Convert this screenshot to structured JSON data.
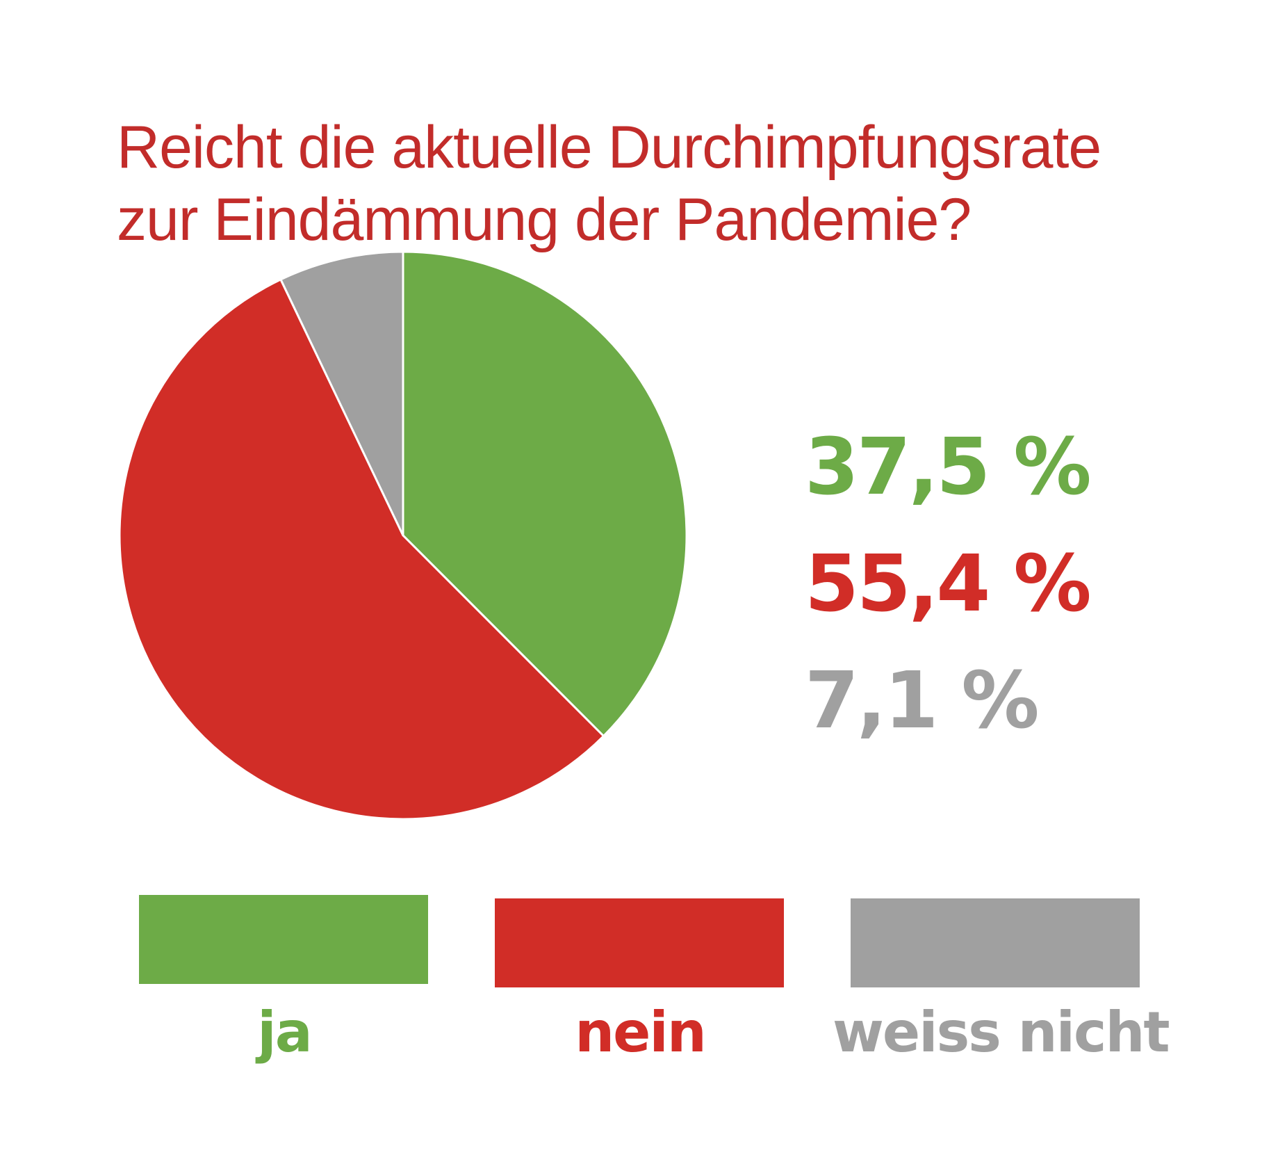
{
  "chart_data": {
    "type": "pie",
    "title": [
      "Reicht die aktuelle Durchimpfungsrate",
      "zur Eindämmung der Pandemie?"
    ],
    "slices": [
      {
        "label": "ja",
        "value": 37.5,
        "value_text": "37,5 %",
        "color": "#6dab47"
      },
      {
        "label": "nein",
        "value": 55.4,
        "value_text": "55,4 %",
        "color": "#d12d27"
      },
      {
        "label": "weiss nicht",
        "value": 7.1,
        "value_text": "7,1 %",
        "color": "#a0a0a0"
      }
    ],
    "start_angle": "12 o'clock",
    "direction": "clockwise",
    "legend_placement": "bottom"
  }
}
